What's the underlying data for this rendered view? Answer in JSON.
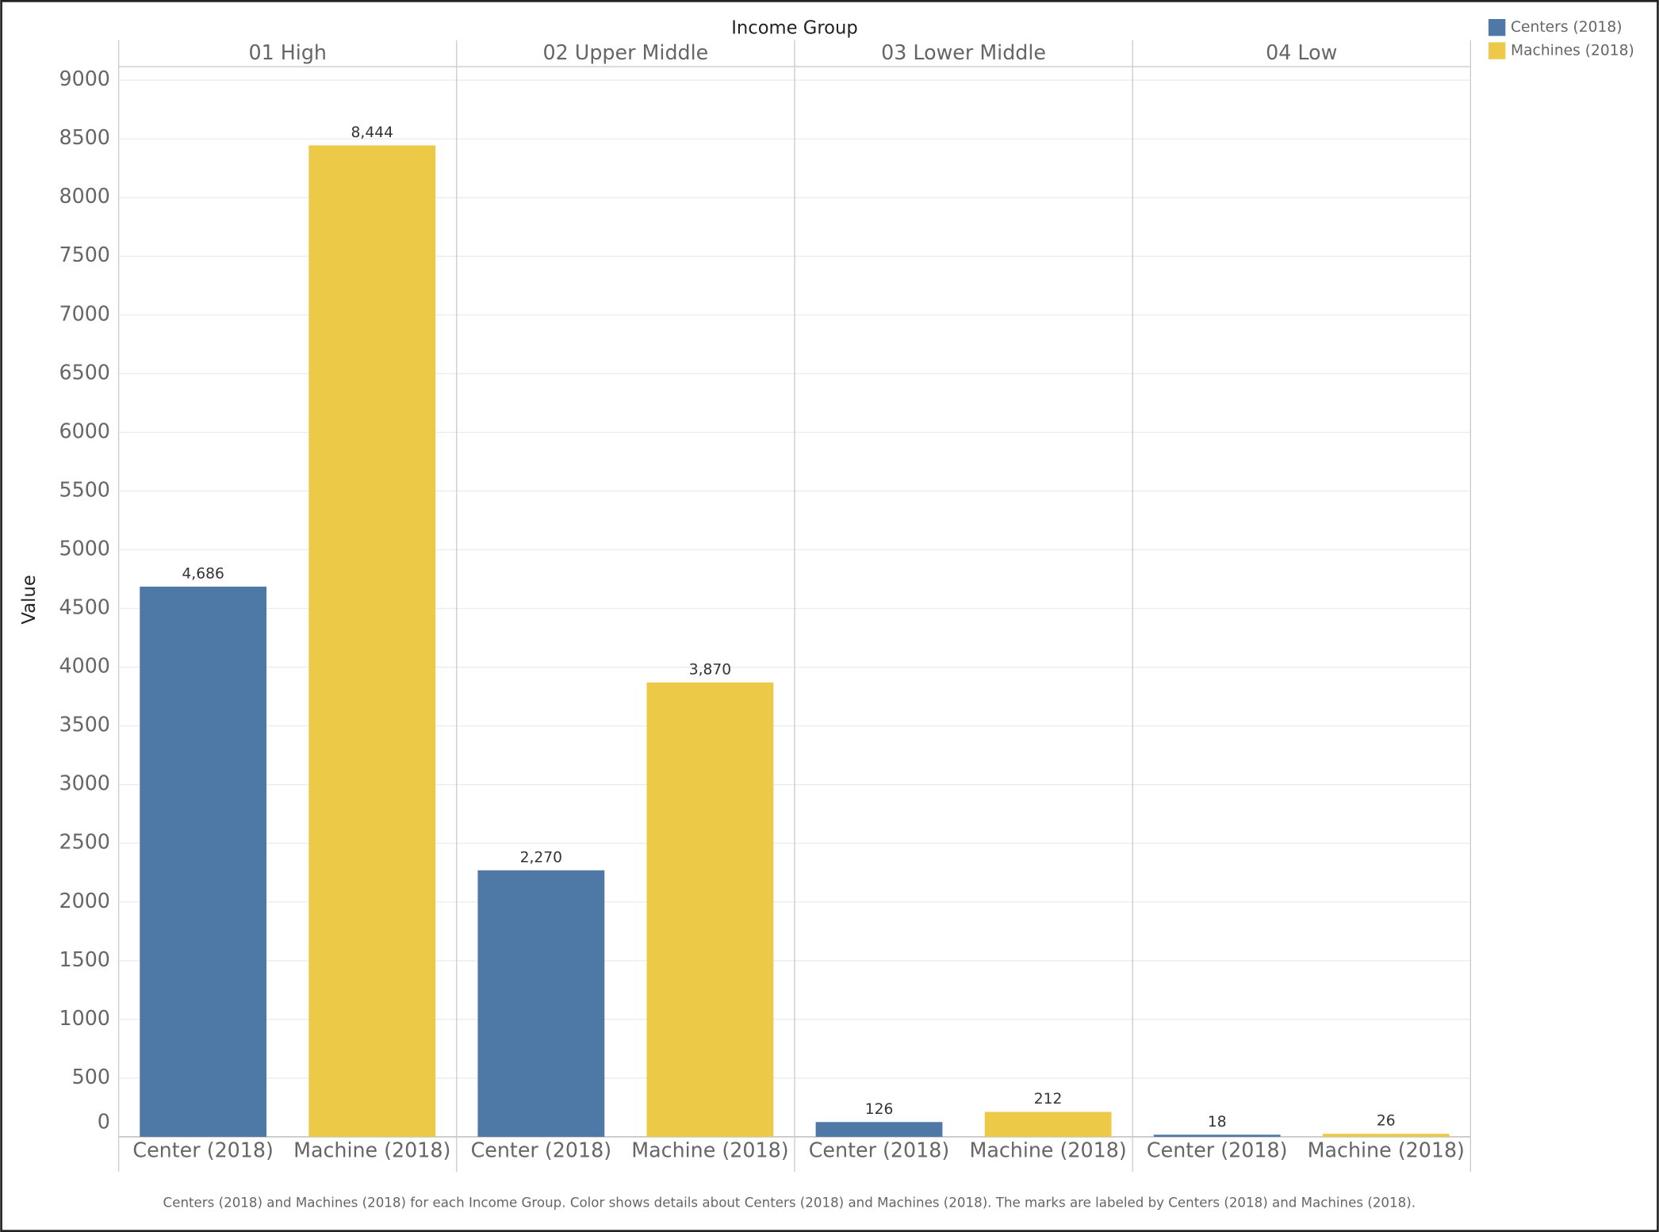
{
  "chart_data": {
    "type": "bar",
    "title": "Income Group",
    "ylabel": "Value",
    "caption": "Centers (2018) and Machines (2018) for each Income Group.  Color shows details about Centers (2018) and Machines (2018).  The marks are labeled by Centers (2018) and Machines (2018).",
    "categories": [
      "01 High",
      "02 Upper Middle",
      "03 Lower Middle",
      "04 Low"
    ],
    "bar_labels": [
      "Center (2018)",
      "Machine (2018)"
    ],
    "series": [
      {
        "name": "Centers (2018)",
        "color": "#4e79a7",
        "values": [
          4686,
          2270,
          126,
          18
        ],
        "value_labels": [
          "4,686",
          "2,270",
          "126",
          "18"
        ]
      },
      {
        "name": "Machines (2018)",
        "color": "#edc948",
        "values": [
          8444,
          3870,
          212,
          26
        ],
        "value_labels": [
          "8,444",
          "3,870",
          "212",
          "26"
        ]
      }
    ],
    "ylim": [
      0,
      9115
    ],
    "yticks": [
      0,
      500,
      1000,
      1500,
      2000,
      2500,
      3000,
      3500,
      4000,
      4500,
      5000,
      5500,
      6000,
      6500,
      7000,
      7500,
      8000,
      8500,
      9000
    ],
    "grid": true,
    "legend": "top-right"
  }
}
